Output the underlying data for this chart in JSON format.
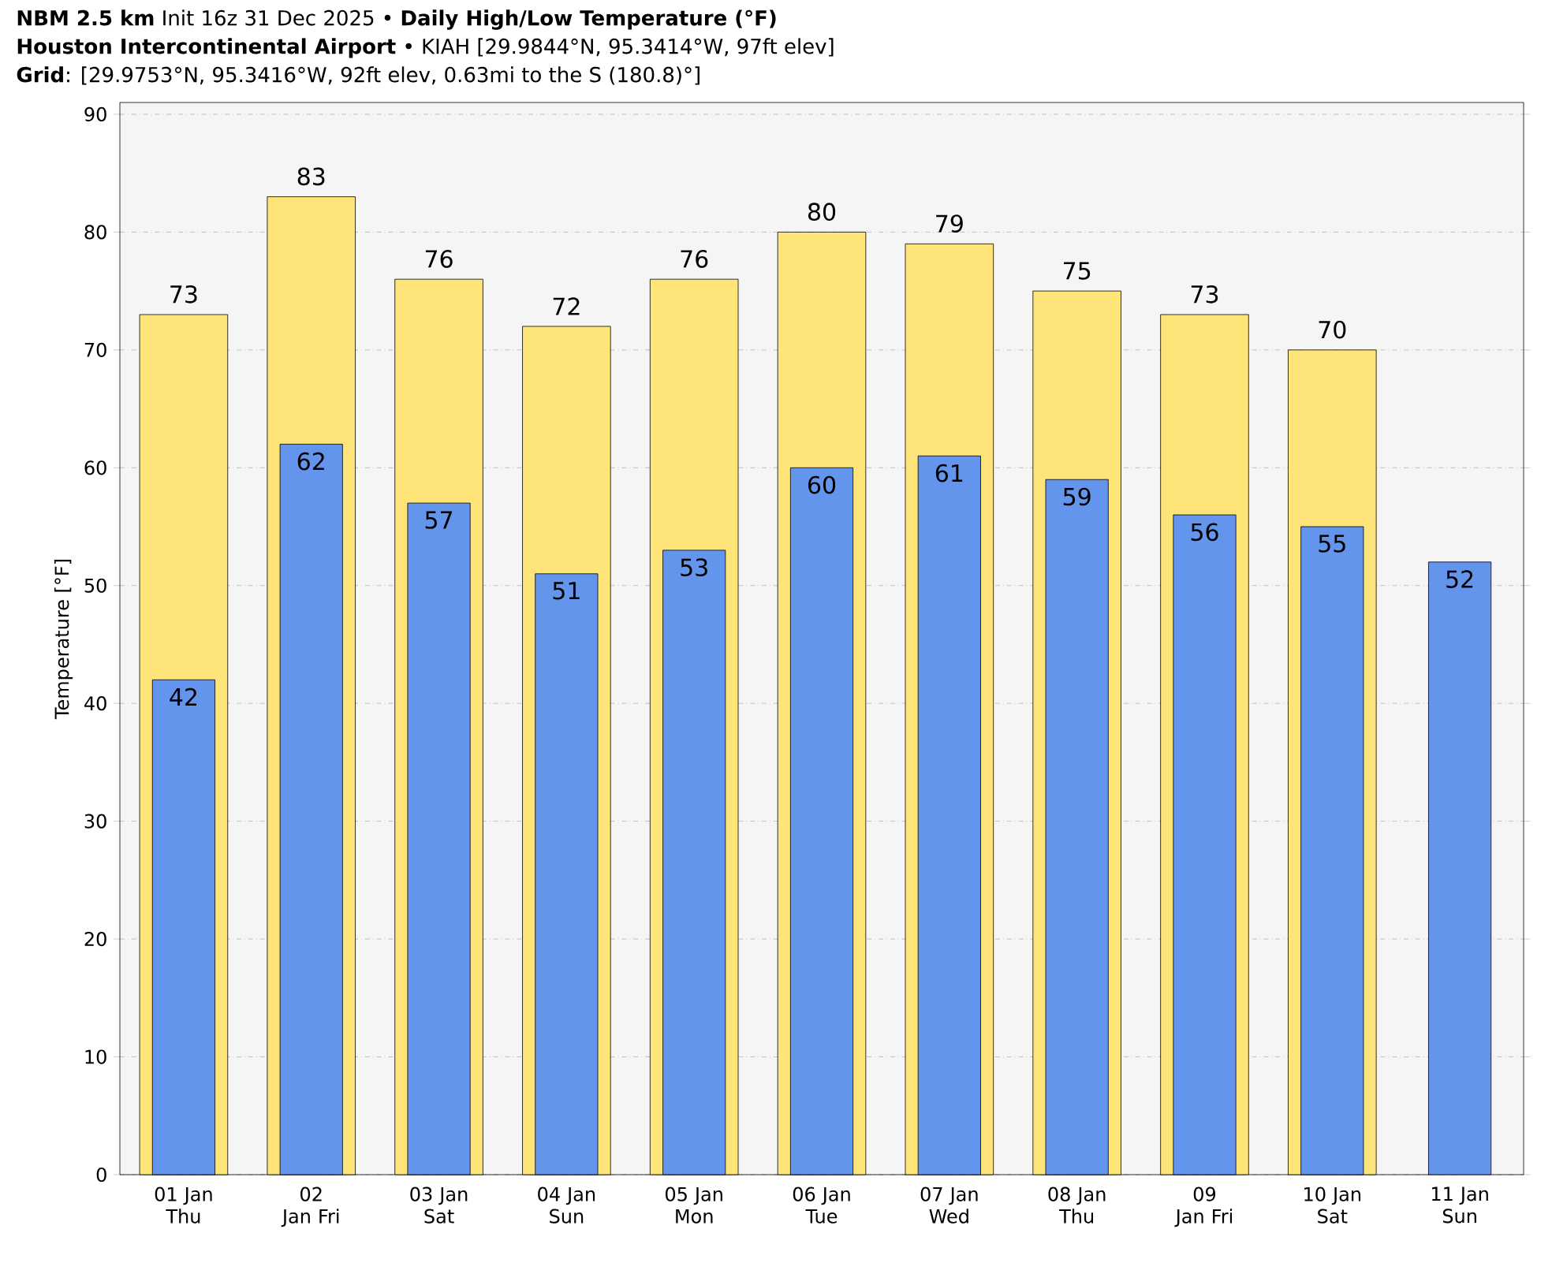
{
  "chart_data": {
    "type": "bar",
    "title": "**NBM 2.5 km** Init 16z 31 Dec 2025 • **Daily High/Low Temperature (°F)**",
    "subtitle": "**Houston Intercontinental Airport** • KIAH [29.9844°N, 95.3414°W, 97ft elev]",
    "annotations": [
      "**Grid**: [29.9753°N, 95.3416°W, 92ft elev, 0.63mi to the S (180.8)°]"
    ],
    "ylabel": "Temperature [°F]",
    "categories": [
      "01 Jan Thu",
      "02 Jan Fri",
      "03 Jan Sat",
      "04 Jan Sun",
      "05 Jan Mon",
      "06 Jan Tue",
      "07 Jan Wed",
      "08 Jan Thu",
      "09 Jan Fri",
      "10 Jan Sat",
      "11 Jan Sun"
    ],
    "series": [
      {
        "color": "#ffe47a",
        "values": [
          73,
          83,
          76,
          72,
          76,
          80,
          79,
          75,
          73,
          70,
          null
        ]
      },
      {
        "color": "#6495ed",
        "values": [
          42,
          62,
          57,
          51,
          53,
          60,
          61,
          59,
          56,
          55,
          52
        ]
      }
    ],
    "ylim": [
      0,
      91
    ],
    "yticks": [
      0,
      10,
      20,
      30,
      40,
      50,
      60,
      70,
      80,
      90
    ],
    "grid": "y",
    "data_labels": true
  }
}
